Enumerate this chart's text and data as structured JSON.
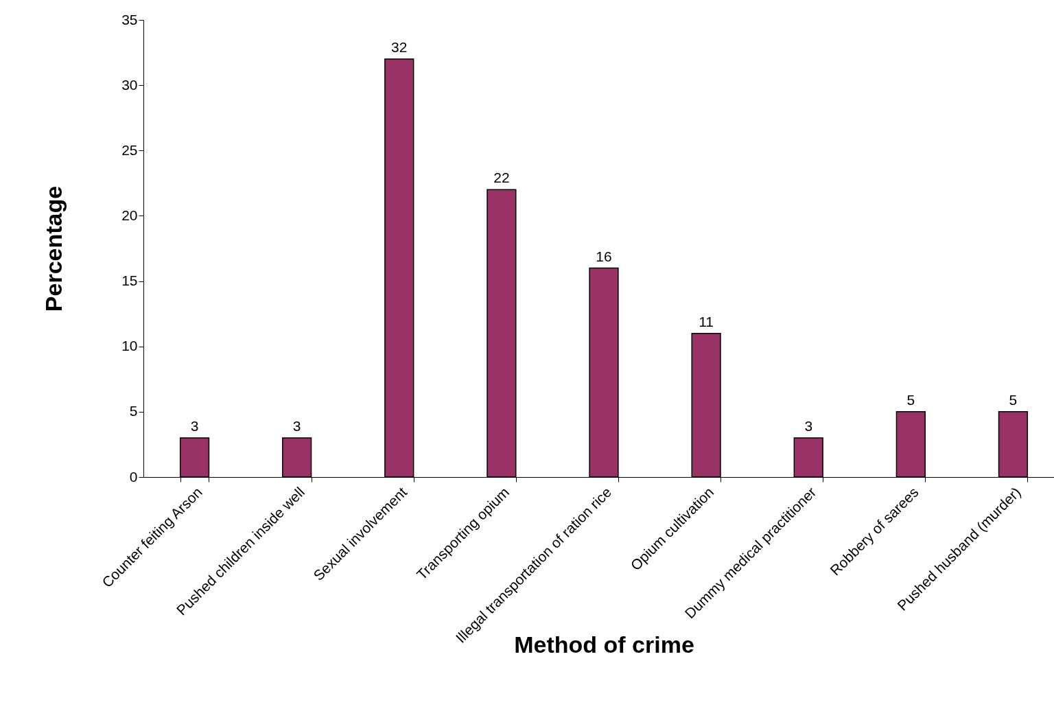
{
  "chart_data": {
    "type": "bar",
    "xlabel": "Method of crime",
    "ylabel": "Percentage",
    "categories": [
      "Counter feiting Arson",
      "Pushed children inside well",
      "Sexual involvement",
      "Transporting opium",
      "Illegal transportation of  ration rice",
      "Opium cultivation",
      "Dummy medical practitioner",
      "Robbery of sarees",
      "Pushed husband (murder)"
    ],
    "values": [
      3,
      3,
      32,
      22,
      16,
      11,
      3,
      5,
      5
    ],
    "color": "#993366",
    "ylim": [
      0,
      35
    ],
    "yticks": [
      0,
      5,
      10,
      15,
      20,
      25,
      30,
      35
    ],
    "data_labels": true,
    "grid": false
  }
}
